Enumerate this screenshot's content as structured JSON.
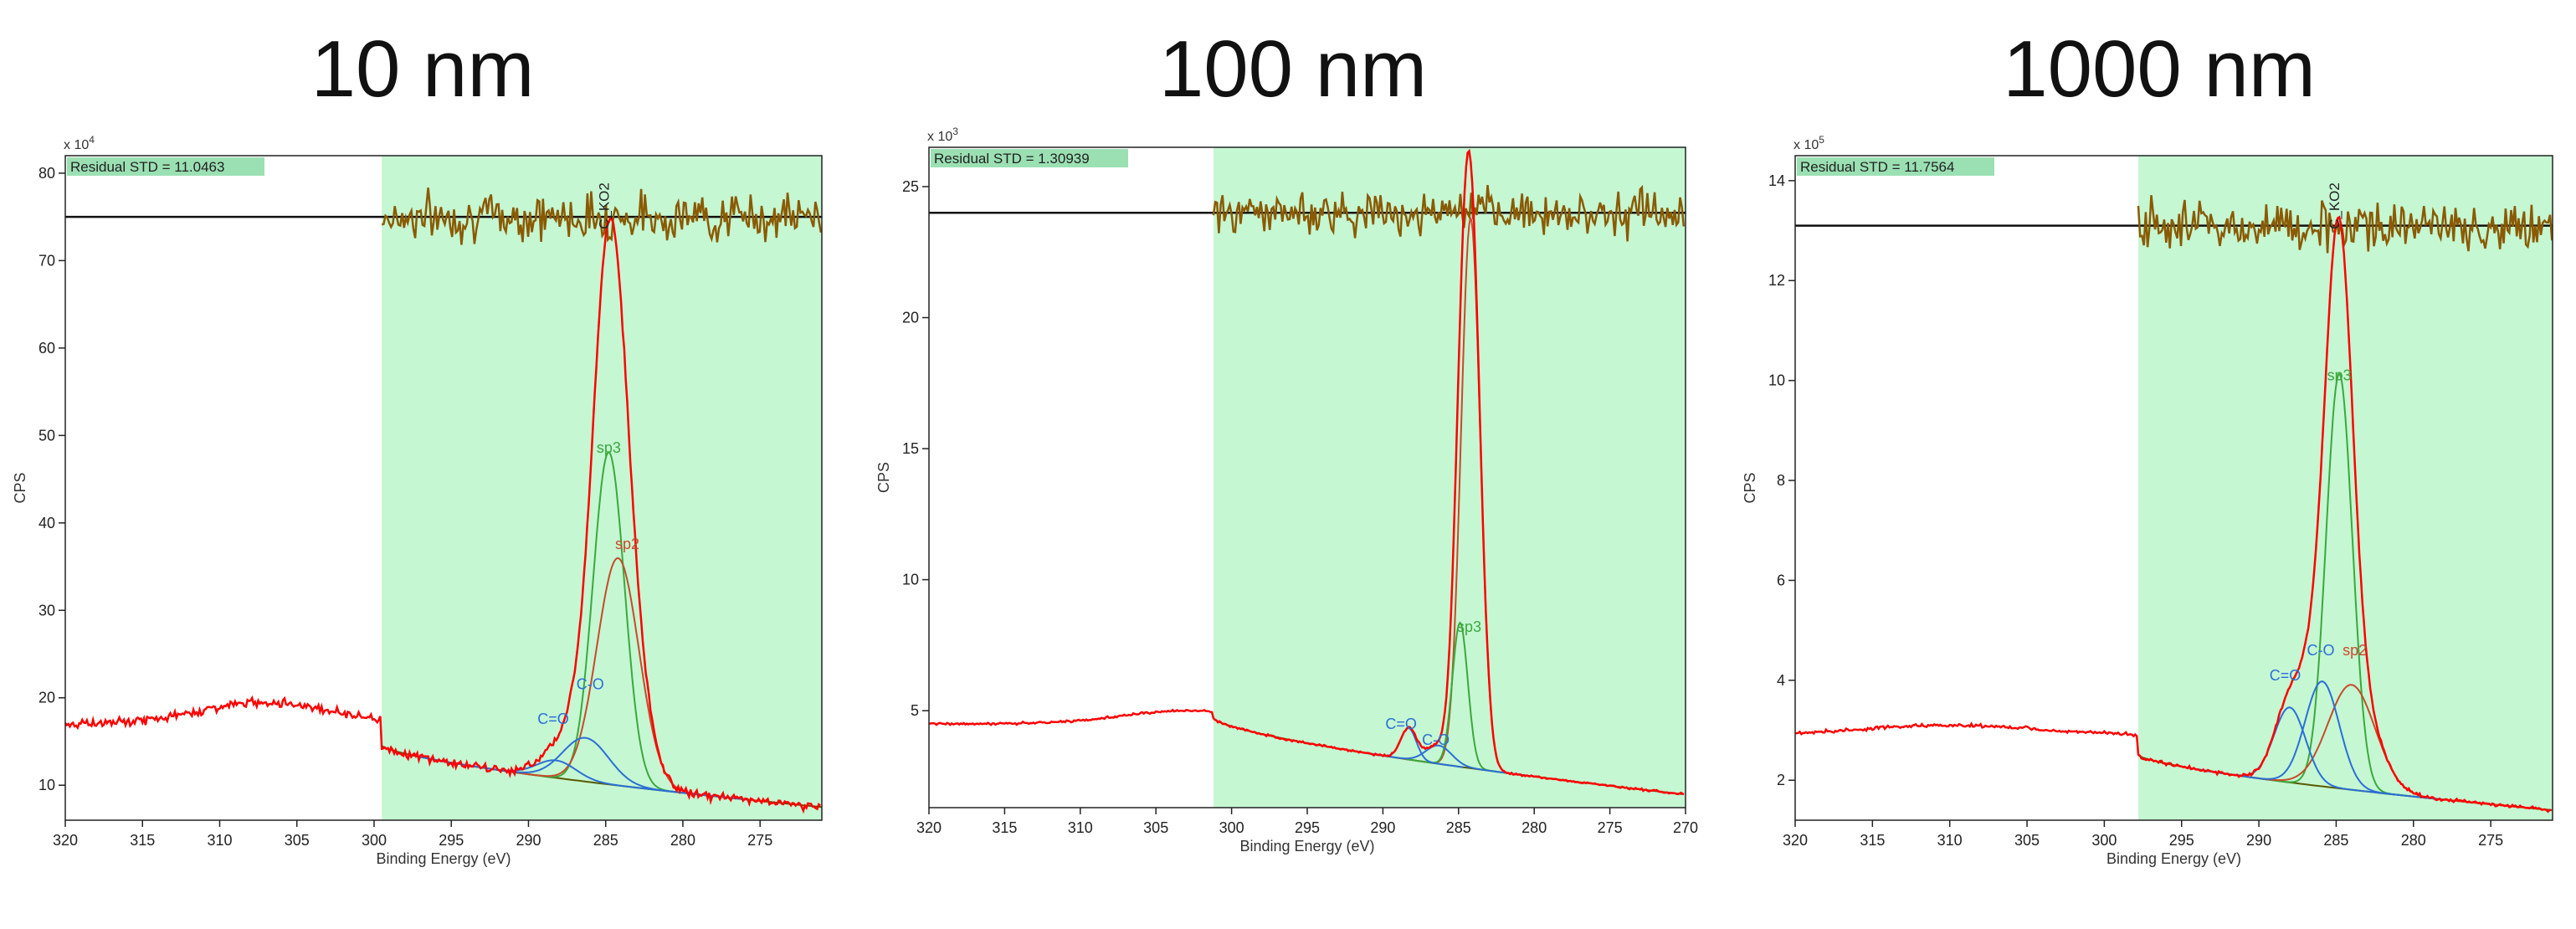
{
  "figure": {
    "panel_titles": [
      "10 nm",
      "100 nm",
      "1000 nm"
    ]
  },
  "colors": {
    "region": "#c5f7d3",
    "envelope": "#ff0000",
    "residual": "#8a5a00",
    "sp3": "#3ca83c",
    "sp2": "#c84a2a",
    "oxygen": "#2a6fd6",
    "background_fit": "#5a5a00"
  },
  "chart_data": [
    {
      "type": "line",
      "title": "10 nm",
      "xlabel": "Binding Energy (eV)",
      "ylabel": "CPS",
      "y_multiplier": "x 10^4",
      "residual_label": "Residual STD = 11.0463",
      "peak_label": "C_KO2",
      "xlim": [
        320,
        271
      ],
      "ylim": [
        6,
        82
      ],
      "x_ticks": [
        320,
        315,
        310,
        305,
        300,
        295,
        290,
        285,
        280,
        275
      ],
      "y_ticks": [
        10,
        20,
        30,
        40,
        50,
        60,
        70,
        80
      ],
      "fit_region": [
        299.5,
        271
      ],
      "residual_baseline": 75,
      "residual_amp": 4,
      "survey": {
        "low": 17,
        "hump_center": 307,
        "hump_height": 2.5,
        "hump_width": 6
      },
      "background": {
        "start_x": 299.5,
        "start_y": 14.5,
        "end_y": 7.5
      },
      "components": [
        {
          "name": "sp3",
          "center": 284.8,
          "height": 38,
          "fwhm": 2.4,
          "color": "sp3"
        },
        {
          "name": "sp2",
          "center": 284.2,
          "height": 26,
          "fwhm": 3.2,
          "color": "sp2"
        },
        {
          "name": "C-O",
          "center": 286.3,
          "height": 5,
          "fwhm": 3.5,
          "color": "oxygen"
        },
        {
          "name": "C=O",
          "center": 288.2,
          "height": 2,
          "fwhm": 3,
          "color": "oxygen"
        }
      ],
      "envelope_noise": 0.7,
      "labels": [
        {
          "text": "sp3",
          "x": 284.8,
          "y": 48,
          "color": "sp3"
        },
        {
          "text": "sp2",
          "x": 283.6,
          "y": 37,
          "color": "sp2"
        },
        {
          "text": "C-O",
          "x": 286.0,
          "y": 21,
          "color": "oxygen"
        },
        {
          "text": "C=O",
          "x": 288.4,
          "y": 17,
          "color": "oxygen"
        }
      ]
    },
    {
      "type": "line",
      "title": "100 nm",
      "xlabel": "Binding Energy (eV)",
      "ylabel": "CPS",
      "y_multiplier": "x 10^3",
      "residual_label": "Residual STD = 1.30939",
      "peak_label": "",
      "xlim": [
        320,
        270
      ],
      "ylim": [
        1.3,
        26.5
      ],
      "x_ticks": [
        320,
        315,
        310,
        305,
        300,
        295,
        290,
        285,
        280,
        275,
        270
      ],
      "y_ticks": [
        5,
        10,
        15,
        20,
        25
      ],
      "fit_region": [
        301.2,
        270
      ],
      "residual_baseline": 24,
      "residual_amp": 1.2,
      "survey": {
        "low": 4.5,
        "hump_center": 303,
        "hump_height": 0.5,
        "hump_width": 6
      },
      "background": {
        "start_x": 301.2,
        "start_y": 4.7,
        "end_y": 1.8
      },
      "components": [
        {
          "name": "sp2",
          "center": 284.2,
          "height": 21,
          "fwhm": 1.5,
          "color": "sp2"
        },
        {
          "name": "sp3",
          "center": 284.9,
          "height": 5.5,
          "fwhm": 1.2,
          "color": "sp3"
        },
        {
          "name": "C-O",
          "center": 286.3,
          "height": 0.7,
          "fwhm": 2,
          "color": "oxygen"
        },
        {
          "name": "C=O",
          "center": 288.3,
          "height": 1.2,
          "fwhm": 1.2,
          "color": "oxygen"
        }
      ],
      "envelope_noise": 0.06,
      "labels": [
        {
          "text": "sp3",
          "x": 284.3,
          "y": 8,
          "color": "sp3"
        },
        {
          "text": "C-O",
          "x": 286.5,
          "y": 3.7,
          "color": "oxygen"
        },
        {
          "text": "C=O",
          "x": 288.8,
          "y": 4.3,
          "color": "oxygen"
        }
      ]
    },
    {
      "type": "line",
      "title": "1000 nm",
      "xlabel": "Binding Energy (eV)",
      "ylabel": "CPS",
      "y_multiplier": "x 10^5",
      "residual_label": "Residual STD = 11.7564",
      "peak_label": "C_KO2",
      "xlim": [
        320,
        271
      ],
      "ylim": [
        1.2,
        14.5
      ],
      "x_ticks": [
        320,
        315,
        310,
        305,
        300,
        295,
        290,
        285,
        280,
        275
      ],
      "y_ticks": [
        2,
        4,
        6,
        8,
        10,
        12,
        14
      ],
      "fit_region": [
        297.8,
        271
      ],
      "residual_baseline": 13.1,
      "residual_amp": 0.7,
      "survey": {
        "low": 2.9,
        "hump_center": 310,
        "hump_height": 0.2,
        "hump_width": 8
      },
      "background": {
        "start_x": 297.8,
        "start_y": 2.5,
        "end_y": 1.4
      },
      "components": [
        {
          "name": "sp3",
          "center": 284.8,
          "height": 8.3,
          "fwhm": 2.0,
          "color": "sp3"
        },
        {
          "name": "sp2",
          "center": 284.0,
          "height": 2.1,
          "fwhm": 3.6,
          "color": "sp2"
        },
        {
          "name": "C-O",
          "center": 285.9,
          "height": 2.1,
          "fwhm": 2.6,
          "color": "oxygen"
        },
        {
          "name": "C=O",
          "center": 288.0,
          "height": 1.5,
          "fwhm": 2.4,
          "color": "oxygen"
        }
      ],
      "envelope_noise": 0.05,
      "labels": [
        {
          "text": "sp3",
          "x": 284.8,
          "y": 10.0,
          "color": "sp3"
        },
        {
          "text": "sp2",
          "x": 283.8,
          "y": 4.5,
          "color": "sp2"
        },
        {
          "text": "C-O",
          "x": 286.0,
          "y": 4.5,
          "color": "oxygen"
        },
        {
          "text": "C=O",
          "x": 288.3,
          "y": 4.0,
          "color": "oxygen"
        }
      ]
    }
  ]
}
